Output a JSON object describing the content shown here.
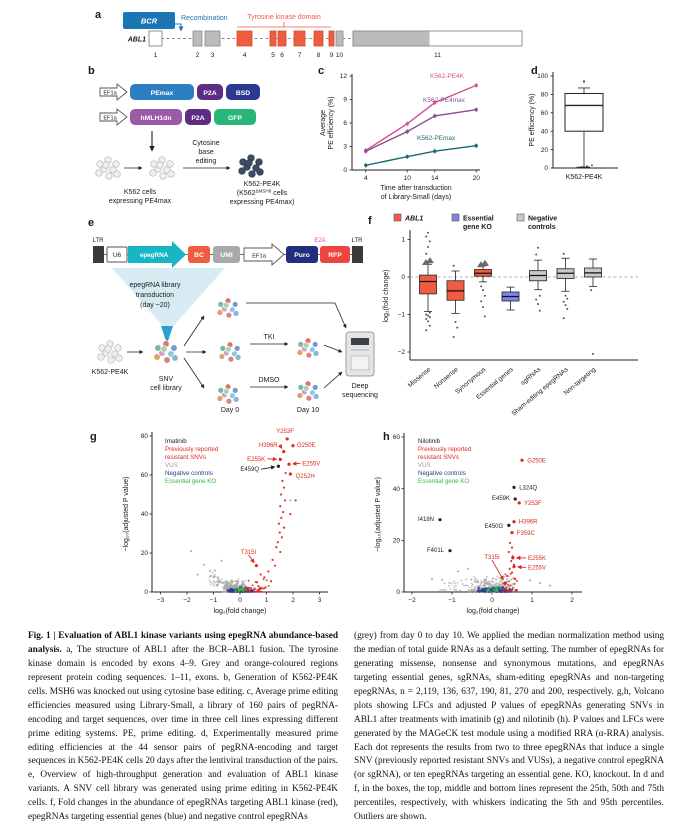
{
  "colors": {
    "orange": "#f05c42",
    "blue": "#1d76b4",
    "teal": "#18b5c4",
    "red": "#d92b1f",
    "navy_pt": "#2a3990",
    "green_pt": "#3bb54a",
    "grey_pt": "#a8a8a8",
    "essential_fill": "#8083ea",
    "negative_fill": "#c9cacc"
  },
  "panel_a": {
    "letter": "a",
    "bcr": "BCR",
    "gene": "ABL1",
    "recombination": "Recombination",
    "tk": "Tyrosine kinase domain",
    "exons": [
      {
        "n": "1",
        "t": "w"
      },
      {
        "n": "2",
        "t": "g"
      },
      {
        "n": "3",
        "t": "g"
      },
      {
        "n": "4",
        "t": "o"
      },
      {
        "n": "5",
        "t": "o"
      },
      {
        "n": "6",
        "t": "o"
      },
      {
        "n": "7",
        "t": "o"
      },
      {
        "n": "8",
        "t": "o"
      },
      {
        "n": "9",
        "t": "o"
      },
      {
        "n": "10",
        "t": "g"
      },
      {
        "n": "11",
        "t": "s"
      }
    ]
  },
  "panel_b": {
    "letter": "b",
    "constructs": [
      {
        "promoter": "EF1a",
        "segments": [
          {
            "label": "PEmax",
            "color": "#2e7fc2"
          },
          {
            "label": "P2A",
            "color": "#5c2d82"
          },
          {
            "label": "BSD",
            "color": "#2b3a8f"
          }
        ]
      },
      {
        "promoter": "EF1a",
        "segments": [
          {
            "label": "hMLH1dn",
            "color": "#9b59a8"
          },
          {
            "label": "P2A",
            "color": "#5c2d82"
          },
          {
            "label": "GFP",
            "color": "#27b57a"
          }
        ]
      }
    ],
    "cbe": [
      "Cytosine",
      "base",
      "editing"
    ],
    "left_cells": [
      "K562 cells",
      "expressing PE4max"
    ],
    "right_line1": "K562-PE4K",
    "right_pre": "(K562",
    "right_sup": "ΔMSH6",
    "right_post": " cells",
    "right_line3": "expressing PE4max)"
  },
  "panel_e": {
    "letter": "e",
    "ltr": "LTR",
    "u6": "U6",
    "epeg": "epegRNA",
    "bc": "BC",
    "umi": "UMI",
    "ef1a": "EF1a",
    "puro": "Puro",
    "e2a": "E2A",
    "rfp": "RFP",
    "funnel": [
      "epegRNA library",
      "transduction",
      "(day −20)"
    ],
    "k562": "K562-PE4K",
    "snv": [
      "SNV",
      "cell library"
    ],
    "day0": "Day 0",
    "tki": "TKI",
    "dmso": "DMSO",
    "day10": "Day 10",
    "deepseq": [
      "Deep",
      "sequencing"
    ]
  },
  "chart_data": [
    {
      "panel": "c",
      "type": "line",
      "x": [
        4,
        10,
        14,
        20
      ],
      "xticks": [
        4,
        10,
        14,
        20
      ],
      "yticks": [
        0,
        3,
        6,
        9,
        12
      ],
      "ylim": [
        0,
        12
      ],
      "xlabel_lines": [
        "Time after transduction",
        "of Library-Small (days)"
      ],
      "ylabel_lines": [
        "Average",
        "PE efficiency (%)"
      ],
      "series": [
        {
          "name": "K562-PE4K",
          "color": "#d3538e",
          "values": [
            2.5,
            5.9,
            8.6,
            10.8
          ]
        },
        {
          "name": "K562-PE4max",
          "color": "#8d4a96",
          "values": [
            2.4,
            4.9,
            6.9,
            7.7
          ]
        },
        {
          "name": "K562-PEmax",
          "color": "#1b6b6e",
          "values": [
            0.6,
            1.7,
            2.4,
            3.1
          ]
        }
      ]
    },
    {
      "panel": "d",
      "type": "box",
      "categories": [
        "K562-PE4K"
      ],
      "ylabel": "PE efficiency (%)",
      "ylim": [
        0,
        100
      ],
      "yticks": [
        0,
        20,
        40,
        60,
        80,
        100
      ],
      "boxes": [
        {
          "lo": 1,
          "q1": 40,
          "med": 68,
          "q3": 81,
          "hi": 87,
          "outliers_top": [
            94
          ],
          "outliers_bottom": [
            0.5,
            1.2,
            2.0,
            3.0
          ]
        }
      ]
    },
    {
      "panel": "f",
      "type": "box",
      "ylabel": "log₂(fold change)",
      "yticks": [
        1,
        0,
        -1,
        -2
      ],
      "ylim": [
        -2.4,
        1.3
      ],
      "legend": [
        {
          "lines": [
            "ABL1"
          ],
          "italic": true,
          "color": "#f05c42"
        },
        {
          "lines": [
            "Essential",
            "gene KO"
          ],
          "italic": false,
          "color": "#8083ea"
        },
        {
          "lines": [
            "Negative",
            "controls"
          ],
          "italic": false,
          "color": "#c9cacc"
        }
      ],
      "categories": [
        "Missense",
        "Nonsense",
        "Synonymous",
        "Essential genes",
        "sgRNAs",
        "Sham-editing epegRNAs",
        "Non-targeting"
      ],
      "boxes": [
        {
          "c": "o",
          "lo": -0.92,
          "q1": -0.45,
          "med": -0.12,
          "q3": 0.05,
          "hi": 0.34,
          "out_t": [
            0.4,
            0.45
          ],
          "out_d": [
            0.62,
            0.8,
            0.95,
            1.08,
            1.18,
            -0.95,
            -1.0,
            -1.03,
            -1.07,
            -1.12,
            -1.18,
            -1.3,
            -1.42
          ]
        },
        {
          "c": "o",
          "lo": -0.97,
          "q1": -0.62,
          "med": -0.37,
          "q3": -0.1,
          "hi": 0.16,
          "out_t": [],
          "out_d": [
            0.3,
            -1.2,
            -1.35,
            -1.6
          ]
        },
        {
          "c": "o",
          "lo": -0.13,
          "q1": 0.02,
          "med": 0.1,
          "q3": 0.2,
          "hi": 0.3,
          "out_t": [
            0.34,
            0.38
          ],
          "out_d": [
            -0.25,
            -0.35,
            -0.5,
            -0.65,
            -0.8,
            -1.05
          ]
        },
        {
          "c": "b",
          "lo": -0.88,
          "q1": -0.64,
          "med": -0.52,
          "q3": -0.4,
          "hi": -0.27,
          "out_t": [],
          "out_d": []
        },
        {
          "c": "g",
          "lo": -0.34,
          "q1": -0.1,
          "med": 0.04,
          "q3": 0.17,
          "hi": 0.45,
          "out_t": [],
          "out_d": [
            0.6,
            0.78,
            -0.5,
            -0.6,
            -0.72,
            -0.9
          ]
        },
        {
          "c": "g",
          "lo": -0.38,
          "q1": -0.04,
          "med": 0.1,
          "q3": 0.22,
          "hi": 0.5,
          "out_t": [],
          "out_d": [
            0.62,
            -0.5,
            -0.58,
            -0.66,
            -0.75,
            -0.85,
            -1.1
          ]
        },
        {
          "c": "g",
          "lo": -0.25,
          "q1": 0.0,
          "med": 0.11,
          "q3": 0.24,
          "hi": 0.48,
          "out_t": [],
          "out_d": [
            -0.35,
            -2.05
          ]
        }
      ]
    },
    {
      "panel": "g",
      "type": "scatter-volcano",
      "title": "Imatinib",
      "xlabel": "log₂(fold change)",
      "ylabel": "−log₁₀(adjusted P value)",
      "xlim": [
        -3,
        3
      ],
      "ylim": [
        0,
        80
      ],
      "xticks": [
        -3,
        -2,
        -1,
        0,
        1,
        2,
        3
      ],
      "yticks": [
        0,
        20,
        40,
        60,
        80
      ],
      "legend": [
        {
          "t": "Previously reported",
          "c": "red"
        },
        {
          "t": "resistant SNVs",
          "c": "red"
        },
        {
          "t": "VUS",
          "c": "grey"
        },
        {
          "t": "Negative controls",
          "c": "navy"
        },
        {
          "t": "Essential gene KO",
          "c": "green"
        }
      ],
      "labeled_points": [
        {
          "label": "Y253F",
          "x": 1.78,
          "y": 78.5,
          "lx": 1.7,
          "ly": 82.5,
          "color": "red",
          "an": "middle"
        },
        {
          "label": "G250E",
          "x": 2.0,
          "y": 75.0,
          "lx": 2.15,
          "ly": 75.5,
          "color": "red",
          "an": "start"
        },
        {
          "label": "H396R",
          "x": 1.65,
          "y": 72.0,
          "lx": 1.42,
          "ly": 75.5,
          "color": "red",
          "an": "end",
          "arrow": true
        },
        {
          "label": "E255K",
          "x": 1.52,
          "y": 68.0,
          "lx": 0.95,
          "ly": 68.3,
          "color": "red",
          "an": "end",
          "arrow": true
        },
        {
          "label": "E255V",
          "x": 1.85,
          "y": 65.5,
          "lx": 2.35,
          "ly": 66.0,
          "color": "red",
          "an": "start",
          "arrow": true
        },
        {
          "label": "E459Q",
          "x": 1.45,
          "y": 64.5,
          "lx": 0.72,
          "ly": 63.0,
          "color": "black",
          "an": "end",
          "arrow": true
        },
        {
          "label": "Q252H",
          "x": 1.9,
          "y": 60.5,
          "lx": 2.1,
          "ly": 59.5,
          "color": "red",
          "an": "start"
        },
        {
          "label": "T315I",
          "x": 0.62,
          "y": 13.5,
          "lx": 0.32,
          "ly": 20.5,
          "color": "red",
          "an": "middle",
          "arrow": true
        }
      ],
      "red_trail": [
        [
          1.72,
          61
        ],
        [
          1.6,
          57
        ],
        [
          1.66,
          53.5
        ],
        [
          1.55,
          50
        ],
        [
          1.7,
          47
        ],
        [
          1.52,
          44
        ],
        [
          1.63,
          41
        ],
        [
          1.56,
          38
        ],
        [
          1.47,
          35
        ],
        [
          1.66,
          33
        ],
        [
          1.5,
          30.5
        ],
        [
          1.58,
          28
        ],
        [
          1.43,
          25.5
        ],
        [
          1.37,
          23
        ],
        [
          1.52,
          20.5
        ],
        [
          1.23,
          16.5
        ],
        [
          1.32,
          13.5
        ],
        [
          1.07,
          10.5
        ],
        [
          0.92,
          7.5
        ],
        [
          1.17,
          5.5
        ],
        [
          0.78,
          9
        ],
        [
          0.64,
          5
        ],
        [
          2.1,
          47
        ],
        [
          1.9,
          40
        ]
      ],
      "grey_singles": [
        [
          -1.85,
          21
        ],
        [
          1.9,
          47
        ],
        [
          -1.35,
          14
        ],
        [
          -0.95,
          11
        ],
        [
          -1.6,
          9
        ],
        [
          -0.7,
          16
        ]
      ]
    },
    {
      "panel": "h",
      "type": "scatter-volcano",
      "title": "Nilotinib",
      "xlabel": "log₂(fold change)",
      "ylabel": "−log₁₀(adjusted P value)",
      "xlim": [
        -2,
        2
      ],
      "ylim": [
        0,
        60
      ],
      "xticks": [
        -2,
        -1,
        0,
        1,
        2
      ],
      "yticks": [
        0,
        20,
        40,
        60
      ],
      "legend": [
        {
          "t": "Previously reported",
          "c": "red"
        },
        {
          "t": "resistant SNVs",
          "c": "red"
        },
        {
          "t": "VUS",
          "c": "grey"
        },
        {
          "t": "Negative controls",
          "c": "navy"
        },
        {
          "t": "Essential gene KO",
          "c": "green"
        }
      ],
      "labeled_points": [
        {
          "label": "G250E",
          "x": 0.75,
          "y": 51.0,
          "lx": 0.88,
          "ly": 51.0,
          "color": "red",
          "an": "start"
        },
        {
          "label": "L324Q",
          "x": 0.55,
          "y": 40.5,
          "lx": 0.68,
          "ly": 40.5,
          "color": "black",
          "an": "start"
        },
        {
          "label": "E459K",
          "x": 0.58,
          "y": 36.0,
          "lx": 0.45,
          "ly": 36.3,
          "color": "black",
          "an": "end"
        },
        {
          "label": "Y253F",
          "x": 0.68,
          "y": 34.5,
          "lx": 0.8,
          "ly": 34.5,
          "color": "red",
          "an": "start"
        },
        {
          "label": "I418N",
          "x": -1.3,
          "y": 28.0,
          "lx": -1.45,
          "ly": 28.3,
          "color": "black",
          "an": "end"
        },
        {
          "label": "H396R",
          "x": 0.55,
          "y": 27.2,
          "lx": 0.67,
          "ly": 27.2,
          "color": "red",
          "an": "start"
        },
        {
          "label": "E450G",
          "x": 0.42,
          "y": 25.8,
          "lx": 0.28,
          "ly": 25.5,
          "color": "black",
          "an": "end"
        },
        {
          "label": "F359C",
          "x": 0.5,
          "y": 23.0,
          "lx": 0.62,
          "ly": 22.8,
          "color": "red",
          "an": "start"
        },
        {
          "label": "F401L",
          "x": -1.05,
          "y": 16.0,
          "lx": -1.2,
          "ly": 16.2,
          "color": "black",
          "an": "end"
        },
        {
          "label": "T315I",
          "x": 0.33,
          "y": 3.5,
          "lx": 0.0,
          "ly": 13.5,
          "color": "red",
          "an": "middle",
          "arrow": true
        },
        {
          "label": "E255K",
          "x": 0.52,
          "y": 13.2,
          "lx": 0.9,
          "ly": 13.2,
          "color": "red",
          "an": "start",
          "arrow": true
        },
        {
          "label": "E255V",
          "x": 0.55,
          "y": 9.8,
          "lx": 0.9,
          "ly": 9.5,
          "color": "red",
          "an": "start",
          "arrow": true
        }
      ],
      "red_trail": [
        [
          0.45,
          19
        ],
        [
          0.5,
          17.2
        ],
        [
          0.42,
          15.5
        ],
        [
          0.52,
          13.8
        ],
        [
          0.48,
          12
        ],
        [
          0.55,
          10.5
        ],
        [
          0.44,
          9
        ],
        [
          0.5,
          7.5
        ],
        [
          0.38,
          6.2
        ],
        [
          0.58,
          5
        ]
      ],
      "grey_singles": [
        [
          -1.3,
          28
        ],
        [
          -1.05,
          16
        ],
        [
          1.2,
          3.5
        ],
        [
          0.95,
          4.5
        ],
        [
          -0.85,
          8
        ],
        [
          1.45,
          2.5
        ],
        [
          -0.6,
          9
        ],
        [
          -1.5,
          5
        ]
      ]
    }
  ],
  "caption": {
    "title": "Fig. 1 | Evaluation of ABL1 kinase variants using epegRNA abundance-based analysis.",
    "left": " a, The structure of ABL1 after the BCR–ABL1 fusion. The tyrosine kinase domain is encoded by exons 4–9. Grey and orange-coloured regions represent protein coding sequences. 1–11, exons. b, Generation of K562-PE4K cells. MSH6 was knocked out using cytosine base editing. c, Average prime editing efficiencies measured using Library-Small, a library of 160 pairs of pegRNA-encoding and target sequences, over time in three cell lines expressing different prime editing systems. PE, prime editing. d, Experimentally measured prime editing efficiencies at the 44 sensor pairs of pegRNA-encoding and target sequences in K562-PE4K cells 20 days after the lentiviral transduction of the pairs. e, Overview of high-throughput generation and evaluation of ABL1 kinase variants. A SNV cell library was generated using prime editing in K562-PE4K cells. f, Fold changes in the abundance of epegRNAs targeting ABL1 kinase (red), epegRNAs targeting essential genes (blue) and negative control epegRNAs",
    "right": "(grey) from day 0 to day 10. We applied the median normalization method using the median of total guide RNAs as a default setting. The number of epegRNAs for generating missense, nonsense and synonymous mutations, and epegRNAs targeting essential genes, sgRNAs, sham-editing epegRNAs and non-targeting epegRNAs, n = 2,119, 136, 637, 190, 81, 270 and 200, respectively. g,h, Volcano plots showing LFCs and adjusted P values of epegRNAs generating SNVs in ABL1 after treatments with imatinib (g) and nilotinib (h). P values and LFCs were generated by the MAGeCK test module using a modified RRA (α-RRA) analysis. Each dot represents the results from two to three epegRNAs that induce a single SNV (previously reported resistant SNVs and VUSs), a negative control epegRNA (or sgRNA), or ten epegRNAs targeting an essential gene. KO, knockout. In d and f, in the boxes, the top, middle and bottom lines represent the 25th, 50th and 75th percentiles, respectively, with whiskers indicating the 5th and 95th percentiles. Outliers are shown."
  }
}
